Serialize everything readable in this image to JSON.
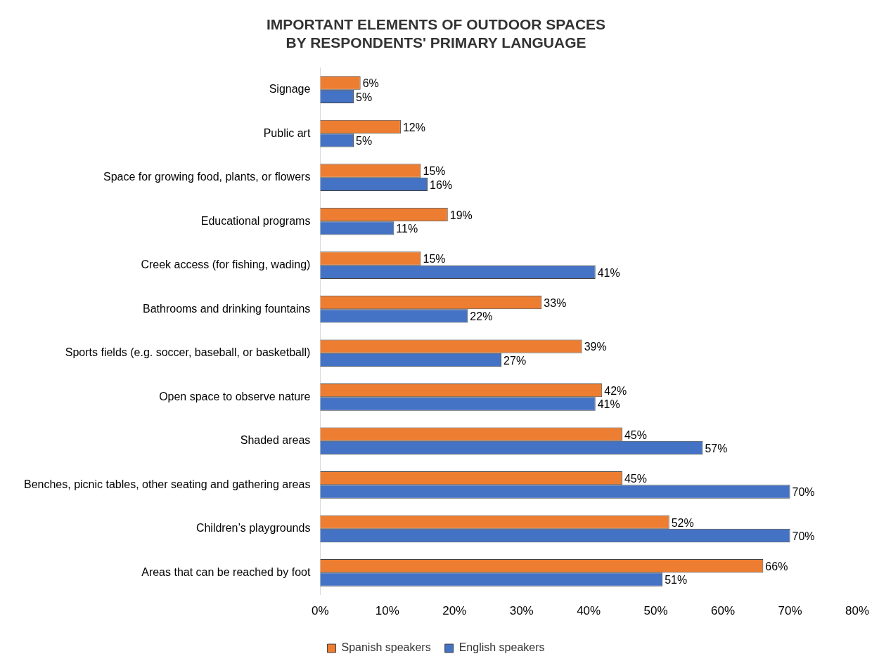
{
  "chart_data": {
    "type": "bar",
    "orientation": "horizontal",
    "title": "IMPORTANT ELEMENTS OF OUTDOOR SPACES\nBY RESPONDENTS' PRIMARY LANGUAGE",
    "categories": [
      "Signage",
      "Public art",
      "Space for growing food, plants, or flowers",
      "Educational programs",
      "Creek access (for fishing, wading)",
      "Bathrooms and drinking fountains",
      "Sports fields (e.g. soccer, baseball, or basketball)",
      "Open space to observe nature",
      "Shaded areas",
      "Benches, picnic tables, other seating and gathering areas",
      "Children’s playgrounds",
      "Areas that can be reached by foot"
    ],
    "series": [
      {
        "name": "Spanish speakers",
        "color": "#ed7d31",
        "values": [
          6,
          12,
          15,
          19,
          15,
          33,
          39,
          42,
          45,
          45,
          52,
          66
        ],
        "value_labels": [
          "6%",
          "12%",
          "15%",
          "19%",
          "15%",
          "33%",
          "39%",
          "42%",
          "45%",
          "45%",
          "52%",
          "66%"
        ]
      },
      {
        "name": "English speakers",
        "color": "#4472c4",
        "values": [
          5,
          5,
          16,
          11,
          41,
          22,
          27,
          41,
          57,
          70,
          70,
          51
        ],
        "value_labels": [
          "5%",
          "5%",
          "16%",
          "11%",
          "41%",
          "22%",
          "27%",
          "41%",
          "57%",
          "70%",
          "70%",
          "51%"
        ]
      }
    ],
    "xlim": [
      0,
      80
    ],
    "xticks": [
      {
        "value": 0,
        "label": "0%"
      },
      {
        "value": 10,
        "label": "10%"
      },
      {
        "value": 20,
        "label": "20%"
      },
      {
        "value": 30,
        "label": "30%"
      },
      {
        "value": 40,
        "label": "40%"
      },
      {
        "value": 50,
        "label": "50%"
      },
      {
        "value": 60,
        "label": "60%"
      },
      {
        "value": 70,
        "label": "70%"
      },
      {
        "value": 80,
        "label": "80%"
      }
    ],
    "grid": false,
    "legend": "bottom"
  }
}
